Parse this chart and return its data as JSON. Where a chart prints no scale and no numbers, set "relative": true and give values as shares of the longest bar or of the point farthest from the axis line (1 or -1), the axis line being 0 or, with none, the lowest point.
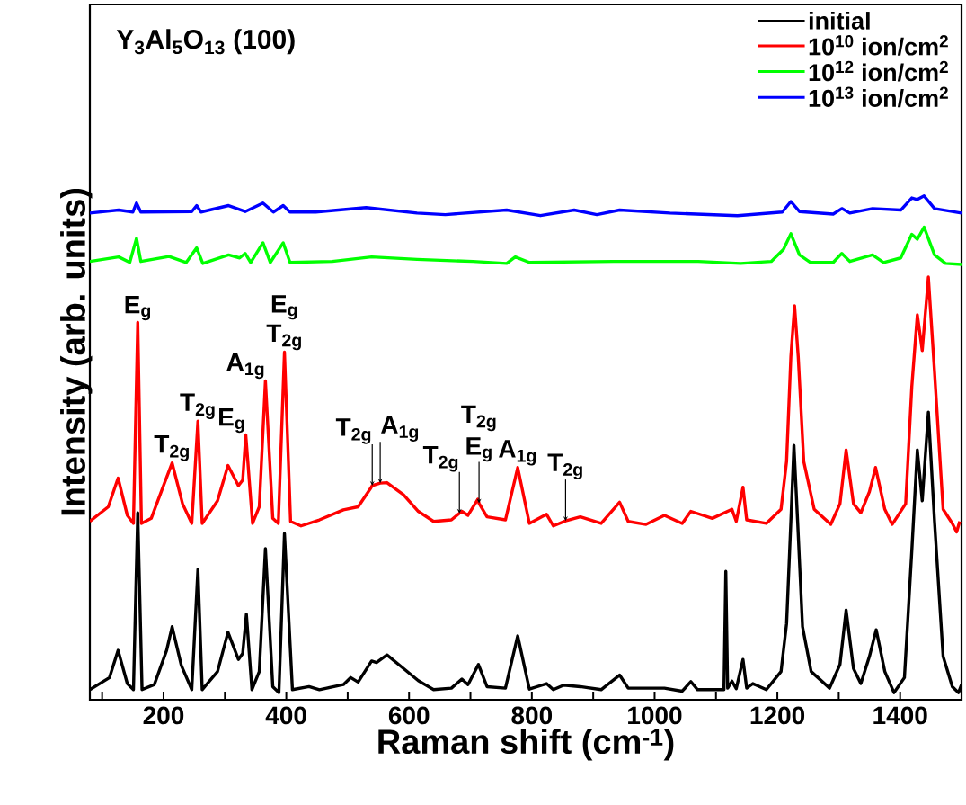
{
  "chart_data": {
    "type": "line",
    "relative": true,
    "title": "Y$_{3}$Al$_{5}$O$_{13}$ (100)",
    "xlabel": "Raman shift (cm$^{-1}$)",
    "ylabel": "Intensity (arb. units)",
    "xlim": [
      80,
      1500
    ],
    "xticks": [
      {
        "value": 100,
        "label": null
      },
      200,
      {
        "value": 300,
        "label": null
      },
      400,
      {
        "value": 500,
        "label": null
      },
      600,
      {
        "value": 700,
        "label": null
      },
      800,
      {
        "value": 900,
        "label": null
      },
      1000,
      {
        "value": 1100,
        "label": null
      },
      1200,
      {
        "value": 1300,
        "label": null
      },
      1400
    ],
    "tick_labels": "x",
    "legend": "top right",
    "marker": "none",
    "line_style": "solid",
    "series": [
      {
        "name": "initial",
        "color": "#000000",
        "x": [
          80,
          112,
          126,
          141,
          151,
          158,
          165,
          185,
          205,
          214,
          229,
          246,
          256,
          263,
          288,
          305,
          322,
          329,
          335,
          344,
          356,
          366,
          378,
          388,
          397,
          410,
          437,
          454,
          493,
          505,
          517,
          539,
          547,
          564,
          591,
          615,
          640,
          669,
          686,
          696,
          713,
          727,
          757,
          777,
          796,
          824,
          835,
          852,
          879,
          913,
          943,
          957,
          1016,
          1045,
          1059,
          1070,
          1113,
          1116,
          1119,
          1126,
          1133,
          1144,
          1150,
          1160,
          1182,
          1206,
          1215,
          1222,
          1227,
          1233,
          1241,
          1255,
          1285,
          1302,
          1312,
          1324,
          1336,
          1350,
          1361,
          1375,
          1390,
          1407,
          1419,
          1428,
          1436,
          1446,
          1456,
          1470,
          1485,
          1495,
          1500
        ],
        "values": [
          0.02,
          0.044,
          0.098,
          0.032,
          0.02,
          0.371,
          0.02,
          0.03,
          0.098,
          0.145,
          0.068,
          0.02,
          0.259,
          0.02,
          0.056,
          0.134,
          0.08,
          0.092,
          0.17,
          0.02,
          0.056,
          0.3,
          0.026,
          0.014,
          0.33,
          0.02,
          0.026,
          0.02,
          0.03,
          0.044,
          0.035,
          0.077,
          0.074,
          0.089,
          0.062,
          0.038,
          0.02,
          0.023,
          0.041,
          0.03,
          0.07,
          0.026,
          0.023,
          0.127,
          0.021,
          0.032,
          0.02,
          0.029,
          0.026,
          0.02,
          0.049,
          0.023,
          0.023,
          0.017,
          0.036,
          0.02,
          0.02,
          0.255,
          0.023,
          0.037,
          0.022,
          0.08,
          0.023,
          0.032,
          0.02,
          0.056,
          0.151,
          0.354,
          0.505,
          0.354,
          0.145,
          0.056,
          0.023,
          0.07,
          0.178,
          0.062,
          0.032,
          0.086,
          0.139,
          0.056,
          0.014,
          0.044,
          0.295,
          0.496,
          0.395,
          0.571,
          0.354,
          0.086,
          0.026,
          0.014,
          0.03
        ]
      },
      {
        "name": "10$^{10}$ ion/cm$^{2}$",
        "color": "#ff0000",
        "x": [
          80,
          110,
          126,
          141,
          151,
          158,
          164,
          180,
          200,
          214,
          231,
          246,
          256,
          263,
          288,
          305,
          322,
          329,
          334,
          345,
          356,
          366,
          378,
          387,
          397,
          407,
          424,
          454,
          493,
          517,
          537,
          540,
          553,
          564,
          591,
          615,
          640,
          669,
          682,
          686,
          696,
          712,
          714,
          727,
          757,
          777,
          796,
          824,
          835,
          855,
          879,
          913,
          943,
          957,
          986,
          1016,
          1045,
          1059,
          1094,
          1126,
          1133,
          1144,
          1150,
          1182,
          1206,
          1215,
          1222,
          1228,
          1234,
          1243,
          1260,
          1287,
          1302,
          1312,
          1324,
          1336,
          1350,
          1360,
          1375,
          1387,
          1409,
          1419,
          1428,
          1436,
          1446,
          1456,
          1470,
          1485,
          1492,
          1497
        ],
        "values": [
          0.354,
          0.383,
          0.44,
          0.366,
          0.35,
          0.749,
          0.35,
          0.36,
          0.425,
          0.47,
          0.389,
          0.35,
          0.553,
          0.35,
          0.395,
          0.465,
          0.425,
          0.436,
          0.526,
          0.35,
          0.383,
          0.633,
          0.36,
          0.35,
          0.69,
          0.354,
          0.345,
          0.357,
          0.377,
          0.383,
          0.419,
          0.425,
          0.43,
          0.431,
          0.407,
          0.374,
          0.354,
          0.357,
          0.37,
          0.374,
          0.366,
          0.398,
          0.39,
          0.363,
          0.357,
          0.461,
          0.35,
          0.368,
          0.345,
          0.355,
          0.363,
          0.35,
          0.392,
          0.354,
          0.348,
          0.366,
          0.35,
          0.374,
          0.36,
          0.378,
          0.354,
          0.422,
          0.357,
          0.35,
          0.378,
          0.473,
          0.681,
          0.782,
          0.681,
          0.473,
          0.378,
          0.348,
          0.389,
          0.496,
          0.389,
          0.371,
          0.413,
          0.461,
          0.378,
          0.348,
          0.389,
          0.621,
          0.764,
          0.693,
          0.839,
          0.651,
          0.378,
          0.35,
          0.333,
          0.354
        ]
      },
      {
        "name": "10$^{12}$ ion/cm$^{2}$",
        "color": "#00ff00",
        "x": [
          80,
          127,
          145,
          156,
          163,
          209,
          237,
          254,
          264,
          306,
          324,
          333,
          342,
          362,
          374,
          395,
          406,
          475,
          539,
          613,
          704,
          759,
          773,
          796,
          933,
          1071,
          1140,
          1190,
          1210,
          1222,
          1236,
          1254,
          1291,
          1305,
          1318,
          1355,
          1373,
          1401,
          1419,
          1428,
          1439,
          1456,
          1474,
          1500
        ],
        "values": [
          0.87,
          0.879,
          0.868,
          0.916,
          0.87,
          0.88,
          0.868,
          0.897,
          0.866,
          0.883,
          0.877,
          0.886,
          0.868,
          0.907,
          0.868,
          0.907,
          0.868,
          0.87,
          0.879,
          0.874,
          0.87,
          0.866,
          0.879,
          0.868,
          0.87,
          0.87,
          0.866,
          0.87,
          0.894,
          0.925,
          0.883,
          0.868,
          0.868,
          0.886,
          0.87,
          0.883,
          0.868,
          0.877,
          0.924,
          0.914,
          0.938,
          0.883,
          0.866,
          0.864
        ]
      },
      {
        "name": "10$^{13}$ ion/cm$^{2}$",
        "color": "#0000ff",
        "x": [
          80,
          127,
          150,
          156,
          163,
          246,
          254,
          261,
          306,
          333,
          362,
          379,
          395,
          406,
          448,
          530,
          613,
          659,
          759,
          814,
          869,
          906,
          943,
          1025,
          1135,
          1208,
          1222,
          1236,
          1291,
          1305,
          1318,
          1355,
          1401,
          1419,
          1428,
          1439,
          1456,
          1500
        ],
        "values": [
          0.966,
          0.972,
          0.968,
          0.986,
          0.968,
          0.969,
          0.981,
          0.968,
          0.981,
          0.969,
          0.986,
          0.968,
          0.981,
          0.968,
          0.968,
          0.977,
          0.966,
          0.963,
          0.972,
          0.961,
          0.972,
          0.963,
          0.972,
          0.966,
          0.961,
          0.968,
          0.989,
          0.969,
          0.964,
          0.975,
          0.966,
          0.975,
          0.972,
          0.996,
          0.993,
          1.0,
          0.975,
          0.966
        ]
      }
    ],
    "annotations": [
      {
        "text": "E$_{g}$",
        "x": 158,
        "y": 0.749
      },
      {
        "text": "T$_{2g}$",
        "x": 214,
        "y": 0.47
      },
      {
        "text": "T$_{2g}$",
        "x": 256,
        "y": 0.553
      },
      {
        "text": "E$_{g}$",
        "x": 334,
        "y": 0.526
      },
      {
        "text": "A$_{1g}$",
        "x": 366,
        "y": 0.633
      },
      {
        "text": "T$_{2g}$",
        "x": 397,
        "y": 0.69
      },
      {
        "text": "E$_{g}$",
        "x": 397,
        "y": 0.69
      },
      {
        "text": "T$_{2g}$",
        "x": 540,
        "y": 0.425
      },
      {
        "text": "A$_{1g}$",
        "x": 553,
        "y": 0.43
      },
      {
        "text": "T$_{2g}$",
        "x": 682,
        "y": 0.37
      },
      {
        "text": "E$_{g}$",
        "x": 714,
        "y": 0.39
      },
      {
        "text": "T$_{2g}$",
        "x": 714,
        "y": 0.39
      },
      {
        "text": "A$_{1g}$",
        "x": 777,
        "y": 0.461
      },
      {
        "text": "T$_{2g}$",
        "x": 855,
        "y": 0.355
      }
    ]
  }
}
